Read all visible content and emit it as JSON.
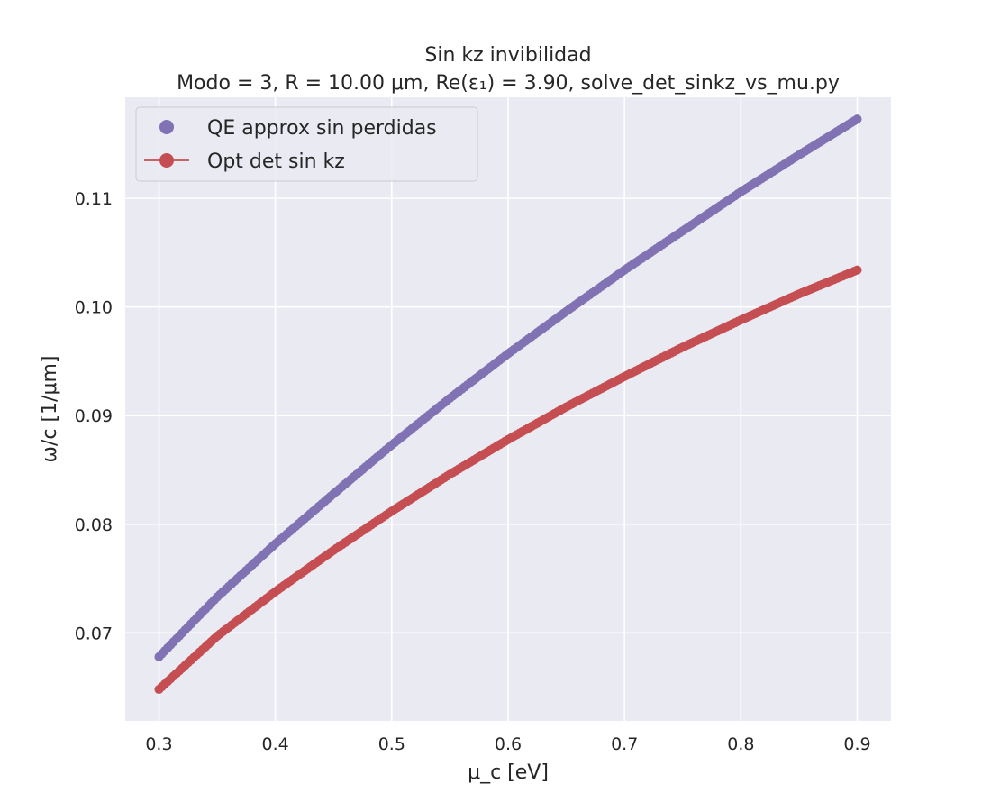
{
  "chart_data": {
    "type": "scatter",
    "title": "Sin kz invibilidad",
    "subtitle": "Modo = 3, R = 10.00 μm, Re(ε₁) = 3.90, solve_det_sinkz_vs_mu.py",
    "xlabel": "μ_c [eV]",
    "ylabel": "ω/c [1/μm]",
    "xlim": [
      0.271,
      0.929
    ],
    "ylim": [
      0.0619,
      0.1193
    ],
    "x_ticks": [
      "0.3",
      "0.4",
      "0.5",
      "0.6",
      "0.7",
      "0.8",
      "0.9"
    ],
    "y_ticks": [
      "0.07",
      "0.08",
      "0.09",
      "0.10",
      "0.11"
    ],
    "grid": true,
    "legend_position": "top-left",
    "series": [
      {
        "name": "QE approx sin perdidas",
        "color": "#8172b3",
        "marker": "circle",
        "line": false,
        "x": [
          0.3,
          0.35,
          0.4,
          0.45,
          0.5,
          0.55,
          0.6,
          0.65,
          0.7,
          0.75,
          0.8,
          0.85,
          0.9
        ],
        "y": [
          0.0678,
          0.0733,
          0.0782,
          0.0828,
          0.0873,
          0.0916,
          0.0957,
          0.0996,
          0.1034,
          0.107,
          0.1106,
          0.114,
          0.1173
        ]
      },
      {
        "name": "Opt det sin kz",
        "color": "#c44e52",
        "marker": "circle",
        "line": true,
        "x": [
          0.3,
          0.35,
          0.4,
          0.45,
          0.5,
          0.55,
          0.6,
          0.65,
          0.7,
          0.75,
          0.8,
          0.85,
          0.9
        ],
        "y": [
          0.0648,
          0.0697,
          0.0738,
          0.0776,
          0.0812,
          0.0846,
          0.0878,
          0.0908,
          0.0936,
          0.0963,
          0.0988,
          0.1012,
          0.1034
        ]
      }
    ]
  }
}
